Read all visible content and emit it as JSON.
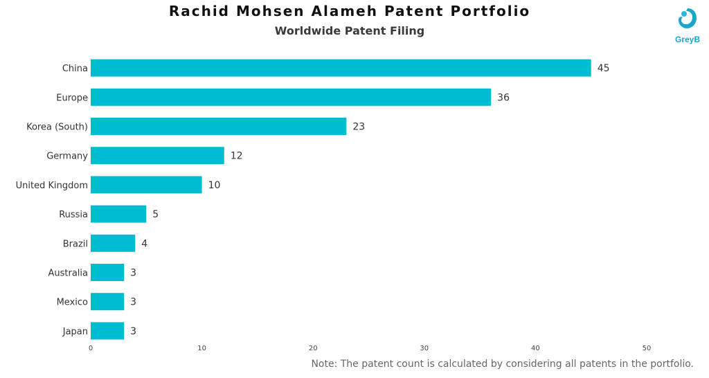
{
  "colors": {
    "bar": "#00BCD0",
    "title": "#111111",
    "subtitle": "#3a3a3a",
    "note": "#666666",
    "brand": "#1aa6c9"
  },
  "logo": {
    "text": "GreyB",
    "icon": "greyb-logo-icon"
  },
  "note": "Note: The patent count is calculated by considering all patents in the portfolio.",
  "chart_data": {
    "type": "bar",
    "orientation": "horizontal",
    "title": "Rachid Mohsen Alameh Patent Portfolio",
    "subtitle": "Worldwide Patent Filing",
    "categories": [
      "China",
      "Europe",
      "Korea (South)",
      "Germany",
      "United Kingdom",
      "Russia",
      "Brazil",
      "Australia",
      "Mexico",
      "Japan"
    ],
    "values": [
      45,
      36,
      23,
      12,
      10,
      5,
      4,
      3,
      3,
      3
    ],
    "xlim": [
      0,
      50
    ],
    "xticks": [
      0,
      10,
      20,
      30,
      40,
      50
    ],
    "xlabel": "",
    "ylabel": "",
    "grid": false,
    "data_labels": true
  }
}
